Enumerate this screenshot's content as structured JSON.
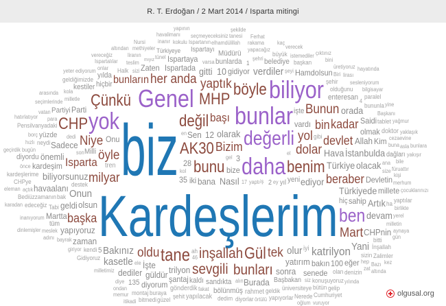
{
  "header": {
    "title": "R. T. Erdoğan / 2 Mart 2014 / Isparta mitingi"
  },
  "footer": {
    "site": "olgusal.org",
    "logo_icon": "red-circle-plus-icon"
  },
  "colors": {
    "b": "#1f77b4",
    "p": "#9b62c9",
    "r": "#8c4a3e",
    "g": "#8a8a8a",
    "gl": "#a3a3a3"
  },
  "words": [
    {
      "t": "havalimanı",
      "c": "gl"
    },
    {
      "t": "seçmeyeceksiniz",
      "c": "gl"
    },
    {
      "t": "inanır",
      "c": "gl"
    },
    {
      "t": "Ispartanın",
      "c": "gl"
    },
    {
      "t": "Nursi",
      "c": "gl"
    },
    {
      "t": "methiyeler",
      "c": "gl"
    },
    {
      "t": "kokulu",
      "c": "gl"
    },
    {
      "t": "elhamdülillah",
      "c": "gl"
    },
    {
      "t": "vereceğiz",
      "c": "gl"
    },
    {
      "t": "liranın",
      "c": "gl"
    },
    {
      "t": "tünel",
      "c": "gl"
    },
    {
      "t": "yapının",
      "c": "gl"
    },
    {
      "t": "Ispartalılar",
      "c": "gl"
    },
    {
      "t": "teslim",
      "c": "gl"
    },
    {
      "t": "Türkiyeye",
      "c": "g"
    },
    {
      "t": "Ispartayı",
      "c": "g"
    },
    {
      "t": "onlar",
      "c": "gl"
    },
    {
      "t": "altından",
      "c": "gl"
    },
    {
      "t": "Ispartada",
      "c": "g"
    },
    {
      "t": "yeter ediyorum",
      "c": "gl"
    },
    {
      "t": "Halk",
      "c": "gl"
    },
    {
      "t": "sizi",
      "c": "gl"
    },
    {
      "t": "Zaten",
      "c": "g"
    },
    {
      "t": "Ispartaya",
      "c": "g"
    },
    {
      "t": "bunlarda",
      "c": "g"
    },
    {
      "t": "Müdürü",
      "c": "g"
    },
    {
      "t": "geldiğimizde",
      "c": "gl"
    },
    {
      "t": "hiçbir",
      "c": "g"
    },
    {
      "t": "bunların",
      "c": "r"
    },
    {
      "t": "kestiler",
      "c": "g"
    },
    {
      "t": "yılda",
      "c": "g"
    },
    {
      "t": "mıyız",
      "c": "gl"
    },
    {
      "t": "gitti",
      "c": "g"
    },
    {
      "t": "10",
      "c": "g"
    },
    {
      "t": "arasında",
      "c": "gl"
    },
    {
      "t": "kola",
      "c": "gl"
    },
    {
      "t": "milletle",
      "c": "gl"
    },
    {
      "t": "Çünkü",
      "c": "r"
    },
    {
      "t": "Genel",
      "c": "p"
    },
    {
      "t": "MHP",
      "c": "r"
    },
    {
      "t": "seçimlerinde",
      "c": "gl"
    },
    {
      "t": "vatan",
      "c": "gl"
    },
    {
      "t": "Partiyi",
      "c": "g"
    },
    {
      "t": "dedi",
      "c": "gl"
    },
    {
      "t": "para",
      "c": "gl"
    },
    {
      "t": "Sen",
      "c": "g"
    },
    {
      "t": "en",
      "c": "gl"
    },
    {
      "t": "varsa",
      "c": "gl"
    },
    {
      "t": "12",
      "c": "g"
    },
    {
      "t": "hatırlatıyor",
      "c": "gl"
    },
    {
      "t": "CHP",
      "c": "r"
    },
    {
      "t": "yok",
      "c": "p"
    },
    {
      "t": "Onu",
      "c": "g"
    },
    {
      "t": "değil",
      "c": "r"
    },
    {
      "t": "başı",
      "c": "r"
    },
    {
      "t": "Pensilvanyadaki",
      "c": "gl"
    },
    {
      "t": "Milli",
      "c": "g"
    },
    {
      "t": "her anda",
      "c": "r"
    },
    {
      "t": "borç",
      "c": "gl"
    },
    {
      "t": "yüzde",
      "c": "g"
    },
    {
      "t": "Niye",
      "c": "r"
    },
    {
      "t": "Parti",
      "c": "g"
    },
    {
      "t": "neydi",
      "c": "gl"
    },
    {
      "t": "Sadece",
      "c": "g"
    },
    {
      "t": "öyle",
      "c": "r"
    },
    {
      "t": "kol",
      "c": "gl"
    },
    {
      "t": "yaptık",
      "c": "r"
    },
    {
      "t": "bugün",
      "c": "gl"
    },
    {
      "t": "hızlı",
      "c": "gl"
    },
    {
      "t": "önemli",
      "c": "g"
    },
    {
      "t": "gel",
      "c": "gl"
    },
    {
      "t": "Isparta",
      "c": "r"
    },
    {
      "t": "Ferhat",
      "c": "gl"
    },
    {
      "t": "tanesi",
      "c": "gl"
    },
    {
      "t": "rakama",
      "c": "gl"
    },
    {
      "t": "kaç",
      "c": "gl"
    },
    {
      "t": "yapacağız",
      "c": "gl"
    },
    {
      "t": "verecek",
      "c": "gl"
    },
    {
      "t": "şekilde",
      "c": "gl"
    },
    {
      "t": "şehri",
      "c": "gl"
    },
    {
      "t": "istemediler",
      "c": "gl"
    },
    {
      "t": "şeyi",
      "c": "gl"
    },
    {
      "t": "büyük",
      "c": "gl"
    },
    {
      "t": "başkan",
      "c": "gl"
    },
    {
      "t": "bini",
      "c": "gl"
    },
    {
      "t": "üretiyoruz",
      "c": "gl"
    },
    {
      "t": "hayatında",
      "c": "gl"
    },
    {
      "t": "belediye",
      "c": "g"
    },
    {
      "t": "çıktınız",
      "c": "gl"
    },
    {
      "t": "Biri",
      "c": "gl"
    },
    {
      "t": "lirası",
      "c": "gl"
    },
    {
      "t": "1",
      "c": "g"
    },
    {
      "t": "verdiler",
      "c": "g"
    },
    {
      "t": "Hamdolsun",
      "c": "g"
    },
    {
      "t": "sesleniyorum",
      "c": "gl"
    },
    {
      "t": "böyle",
      "c": "r"
    },
    {
      "t": "biliyor",
      "c": "p"
    },
    {
      "t": "olduğunu",
      "c": "gl"
    },
    {
      "t": "bilgisayar",
      "c": "gl"
    },
    {
      "t": "bunlar",
      "c": "p"
    },
    {
      "t": "bin",
      "c": "r"
    },
    {
      "t": "Bunun",
      "c": "r"
    },
    {
      "t": "enteresan",
      "c": "g"
    },
    {
      "t": "paralel",
      "c": "gl"
    },
    {
      "t": "bununla",
      "c": "gl"
    },
    {
      "t": "yine",
      "c": "gl"
    },
    {
      "t": "değerli",
      "c": "p"
    },
    {
      "t": "işte",
      "c": "g"
    },
    {
      "t": "gibi",
      "c": "gl"
    },
    {
      "t": "kadar",
      "c": "r"
    },
    {
      "t": "Saidi",
      "c": "g"
    },
    {
      "t": "Başkanı",
      "c": "gl"
    },
    {
      "t": "şehir",
      "c": "gl"
    },
    {
      "t": "orada",
      "c": "g"
    },
    {
      "t": "tablet",
      "c": "gl"
    },
    {
      "t": "yağmur",
      "c": "gl"
    },
    {
      "t": "cezaevine",
      "c": "gl"
    },
    {
      "t": "gidiyor",
      "c": "g"
    },
    {
      "t": "el",
      "c": "gl"
    },
    {
      "t": "iş",
      "c": "gl"
    },
    {
      "t": "vardı",
      "c": "g"
    },
    {
      "t": "Hava",
      "c": "g"
    },
    {
      "t": "4",
      "c": "gl"
    },
    {
      "t": "olmak",
      "c": "g"
    },
    {
      "t": "doktor",
      "c": "gl"
    },
    {
      "t": "yaklaşık",
      "c": "gl"
    },
    {
      "t": "olarak",
      "c": "g"
    },
    {
      "t": "yaptı",
      "c": "gl"
    },
    {
      "t": "devlet",
      "c": "r"
    },
    {
      "t": "Türkiye",
      "c": "g"
    },
    {
      "t": "İstanbulda",
      "c": "g"
    },
    {
      "t": "buna",
      "c": "gl"
    },
    {
      "t": "Nasıl",
      "c": "g"
    },
    {
      "t": "ana",
      "c": "gl"
    },
    {
      "t": "ey",
      "c": "gl"
    },
    {
      "t": "asla",
      "c": "gl"
    },
    {
      "t": "bunlara",
      "c": "gl"
    },
    {
      "t": "size",
      "c": "gl"
    },
    {
      "t": "Kim",
      "c": "g"
    },
    {
      "t": "Allah",
      "c": "g"
    },
    {
      "t": "yakışır",
      "c": "gl"
    },
    {
      "t": "bana",
      "c": "g"
    },
    {
      "t": "3",
      "c": "g"
    },
    {
      "t": "dolar",
      "c": "r"
    },
    {
      "t": "dağları",
      "c": "g"
    },
    {
      "t": "yol",
      "c": "r"
    },
    {
      "t": "ediyor",
      "c": "g"
    },
    {
      "t": "olacak",
      "c": "g"
    },
    {
      "t": "bile",
      "c": "gl"
    },
    {
      "t": "füruattır",
      "c": "gl"
    },
    {
      "t": "daha",
      "c": "p"
    },
    {
      "t": "benim",
      "c": "r"
    },
    {
      "t": "Türkiyede",
      "c": "g"
    },
    {
      "t": "kişi",
      "c": "gl"
    },
    {
      "t": "Bizim",
      "c": "r"
    },
    {
      "t": "yeni",
      "c": "g"
    },
    {
      "t": "beraber",
      "c": "r"
    },
    {
      "t": "Devletin",
      "c": "g"
    },
    {
      "t": "bunu",
      "c": "r"
    },
    {
      "t": "AK30",
      "c": "r"
    },
    {
      "t": "28",
      "c": "g"
    },
    {
      "t": "merhum",
      "c": "gl"
    },
    {
      "t": "biz",
      "c": "b"
    },
    {
      "t": "Kardeşlerim",
      "c": "b"
    },
    {
      "t": "milyar",
      "c": "r"
    },
    {
      "t": "35",
      "c": "g"
    },
    {
      "t": "olsun",
      "c": "g"
    },
    {
      "t": "millete",
      "c": "g"
    },
    {
      "t": "bak",
      "c": "gl"
    },
    {
      "t": "önce",
      "c": "gl"
    },
    {
      "t": "son",
      "c": "gl"
    },
    {
      "t": "46",
      "c": "gl"
    },
    {
      "t": "17",
      "c": "gl"
    },
    {
      "t": "yıl",
      "c": "g"
    },
    {
      "t": "2",
      "c": "g"
    },
    {
      "t": "ha",
      "c": "gl"
    },
    {
      "t": "Artık",
      "c": "g"
    },
    {
      "t": "çocuklarınızı",
      "c": "gl"
    },
    {
      "t": "yaptılar",
      "c": "gl"
    },
    {
      "t": "birlikte",
      "c": "gl"
    },
    {
      "t": "devam",
      "c": "g"
    },
    {
      "t": "yerel",
      "c": "gl"
    },
    {
      "t": "sahip",
      "c": "g"
    },
    {
      "t": "milletin",
      "c": "gl"
    },
    {
      "t": "iki",
      "c": "g"
    },
    {
      "t": "ah",
      "c": "gl"
    },
    {
      "t": "başka",
      "c": "r"
    },
    {
      "t": "oldu",
      "c": "r"
    },
    {
      "t": "bize",
      "c": "g"
    },
    {
      "t": "tek",
      "c": "r"
    },
    {
      "t": "Gül",
      "c": "r"
    },
    {
      "t": "olur",
      "c": "g"
    },
    {
      "t": "hiç",
      "c": "g"
    },
    {
      "t": "ben",
      "c": "p"
    },
    {
      "t": "Mart",
      "c": "r"
    },
    {
      "t": "alın",
      "c": "gl"
    },
    {
      "t": "bitti",
      "c": "gl"
    },
    {
      "t": "aynaya",
      "c": "gl"
    },
    {
      "t": "tane",
      "c": "r"
    },
    {
      "t": "kaldı",
      "c": "g"
    },
    {
      "t": "inşallah",
      "c": "r"
    },
    {
      "t": "bakın",
      "c": "g"
    },
    {
      "t": "iyi",
      "c": "gl"
    },
    {
      "t": "katrilyon",
      "c": "g"
    },
    {
      "t": "CHPnin",
      "c": "g"
    },
    {
      "t": "gün",
      "c": "gl"
    },
    {
      "t": "sevgili",
      "c": "r"
    },
    {
      "t": "ele",
      "c": "gl"
    },
    {
      "t": "İşte",
      "c": "g"
    },
    {
      "t": "yatırım",
      "c": "g"
    },
    {
      "t": "yapıyoruz",
      "c": "g"
    },
    {
      "t": "Tabi",
      "c": "gl"
    },
    {
      "t": "inanıyorum",
      "c": "gl"
    },
    {
      "t": "Bakınız",
      "c": "g"
    },
    {
      "t": "5",
      "c": "g"
    },
    {
      "t": "zaman",
      "c": "g"
    },
    {
      "t": "tüm",
      "c": "g"
    },
    {
      "t": "geldi",
      "c": "g"
    },
    {
      "t": "meslek",
      "c": "gl"
    },
    {
      "t": "dinlemişler",
      "c": "gl"
    },
    {
      "t": "bayrak",
      "c": "gl"
    },
    {
      "t": "kendi",
      "c": "gl"
    },
    {
      "t": "kasetle",
      "c": "g"
    },
    {
      "t": "giriyor",
      "c": "gl"
    },
    {
      "t": "şantaj",
      "c": "g"
    },
    {
      "t": "trilyon",
      "c": "g"
    },
    {
      "t": "Gidiyoruz",
      "c": "gl"
    },
    {
      "t": "dediler",
      "c": "g"
    },
    {
      "t": "güldür",
      "c": "g"
    },
    {
      "t": "sandıkta",
      "c": "g"
    },
    {
      "t": "bunları",
      "c": "r"
    },
    {
      "t": "bölünmüş",
      "c": "g"
    },
    {
      "t": "siz",
      "c": "gl"
    },
    {
      "t": "hep",
      "c": "gl"
    },
    {
      "t": "zat",
      "c": "gl"
    },
    {
      "t": "Yani",
      "c": "g"
    },
    {
      "t": "sizin",
      "c": "gl"
    },
    {
      "t": "İnşallah",
      "c": "gl"
    },
    {
      "t": "sonra",
      "c": "g"
    },
    {
      "t": "senede",
      "c": "g"
    },
    {
      "t": "Bazı",
      "c": "gl"
    },
    {
      "t": "Zalimler",
      "c": "gl"
    },
    {
      "t": "örtülü",
      "c": "gl"
    },
    {
      "t": "100",
      "c": "g"
    },
    {
      "t": "eğer",
      "c": "g"
    },
    {
      "t": "olan",
      "c": "gl"
    },
    {
      "t": "kez",
      "c": "gl"
    },
    {
      "t": "Burada",
      "c": "g"
    },
    {
      "t": "altında",
      "c": "gl"
    },
    {
      "t": "Başbakan",
      "c": "g"
    },
    {
      "t": "milletimiz",
      "c": "gl"
    },
    {
      "t": "diyorum",
      "c": "g"
    },
    {
      "t": "diye",
      "c": "gl"
    },
    {
      "t": "135",
      "c": "g"
    },
    {
      "t": "gönderdik",
      "c": "gl"
    },
    {
      "t": "dedim",
      "c": "gl"
    },
    {
      "t": "geldik",
      "c": "gl"
    },
    {
      "t": "konuşuyoruz",
      "c": "gl"
    },
    {
      "t": "ondan",
      "c": "gl"
    },
    {
      "t": "memur",
      "c": "gl"
    },
    {
      "t": "şehit",
      "c": "gl"
    },
    {
      "t": "yapılacak",
      "c": "gl"
    },
    {
      "t": "rahmet",
      "c": "gl"
    },
    {
      "t": "üniversiteye",
      "c": "gl"
    },
    {
      "t": "bütün",
      "c": "gl"
    },
    {
      "t": "denizin",
      "c": "gl"
    },
    {
      "t": "itikadi",
      "c": "gl"
    },
    {
      "t": "buraya",
      "c": "gl"
    },
    {
      "t": "diyorlar",
      "c": "gl"
    },
    {
      "t": "fakat",
      "c": "gl"
    },
    {
      "t": "yapıyorlar",
      "c": "gl"
    },
    {
      "t": "oğlum",
      "c": "gl"
    },
    {
      "t": "yılında",
      "c": "gl"
    },
    {
      "t": "güzel",
      "c": "gl"
    },
    {
      "t": "bitmedi",
      "c": "gl"
    },
    {
      "t": "montaj",
      "c": "gl"
    },
    {
      "t": "Nerede",
      "c": "gl"
    },
    {
      "t": "Cumhuriyet",
      "c": "gl"
    },
    {
      "t": "gelip",
      "c": "gl"
    },
    {
      "t": "vuruyor",
      "c": "gl"
    },
    {
      "t": "kardeşlerime",
      "c": "gl"
    },
    {
      "t": "geçirdik",
      "c": "gl"
    },
    {
      "t": "diyordu",
      "c": "g"
    },
    {
      "t": "biliyorsunuz",
      "c": "g"
    },
    {
      "t": "tren",
      "c": "gl"
    },
    {
      "t": "CHPye",
      "c": "gl"
    },
    {
      "t": "açtık",
      "c": "gl"
    },
    {
      "t": "kardeşim",
      "c": "g"
    },
    {
      "t": "eleman",
      "c": "gl"
    },
    {
      "t": "destek",
      "c": "gl"
    },
    {
      "t": "karadan",
      "c": "gl"
    },
    {
      "t": "havaalanı",
      "c": "g"
    },
    {
      "t": "Bediüzzamanın",
      "c": "gl"
    },
    {
      "t": "Onun",
      "c": "g"
    },
    {
      "t": "edeceğiz",
      "c": "gl"
    },
    {
      "t": "adını",
      "c": "gl"
    },
    {
      "t": "Martta",
      "c": "g"
    }
  ]
}
